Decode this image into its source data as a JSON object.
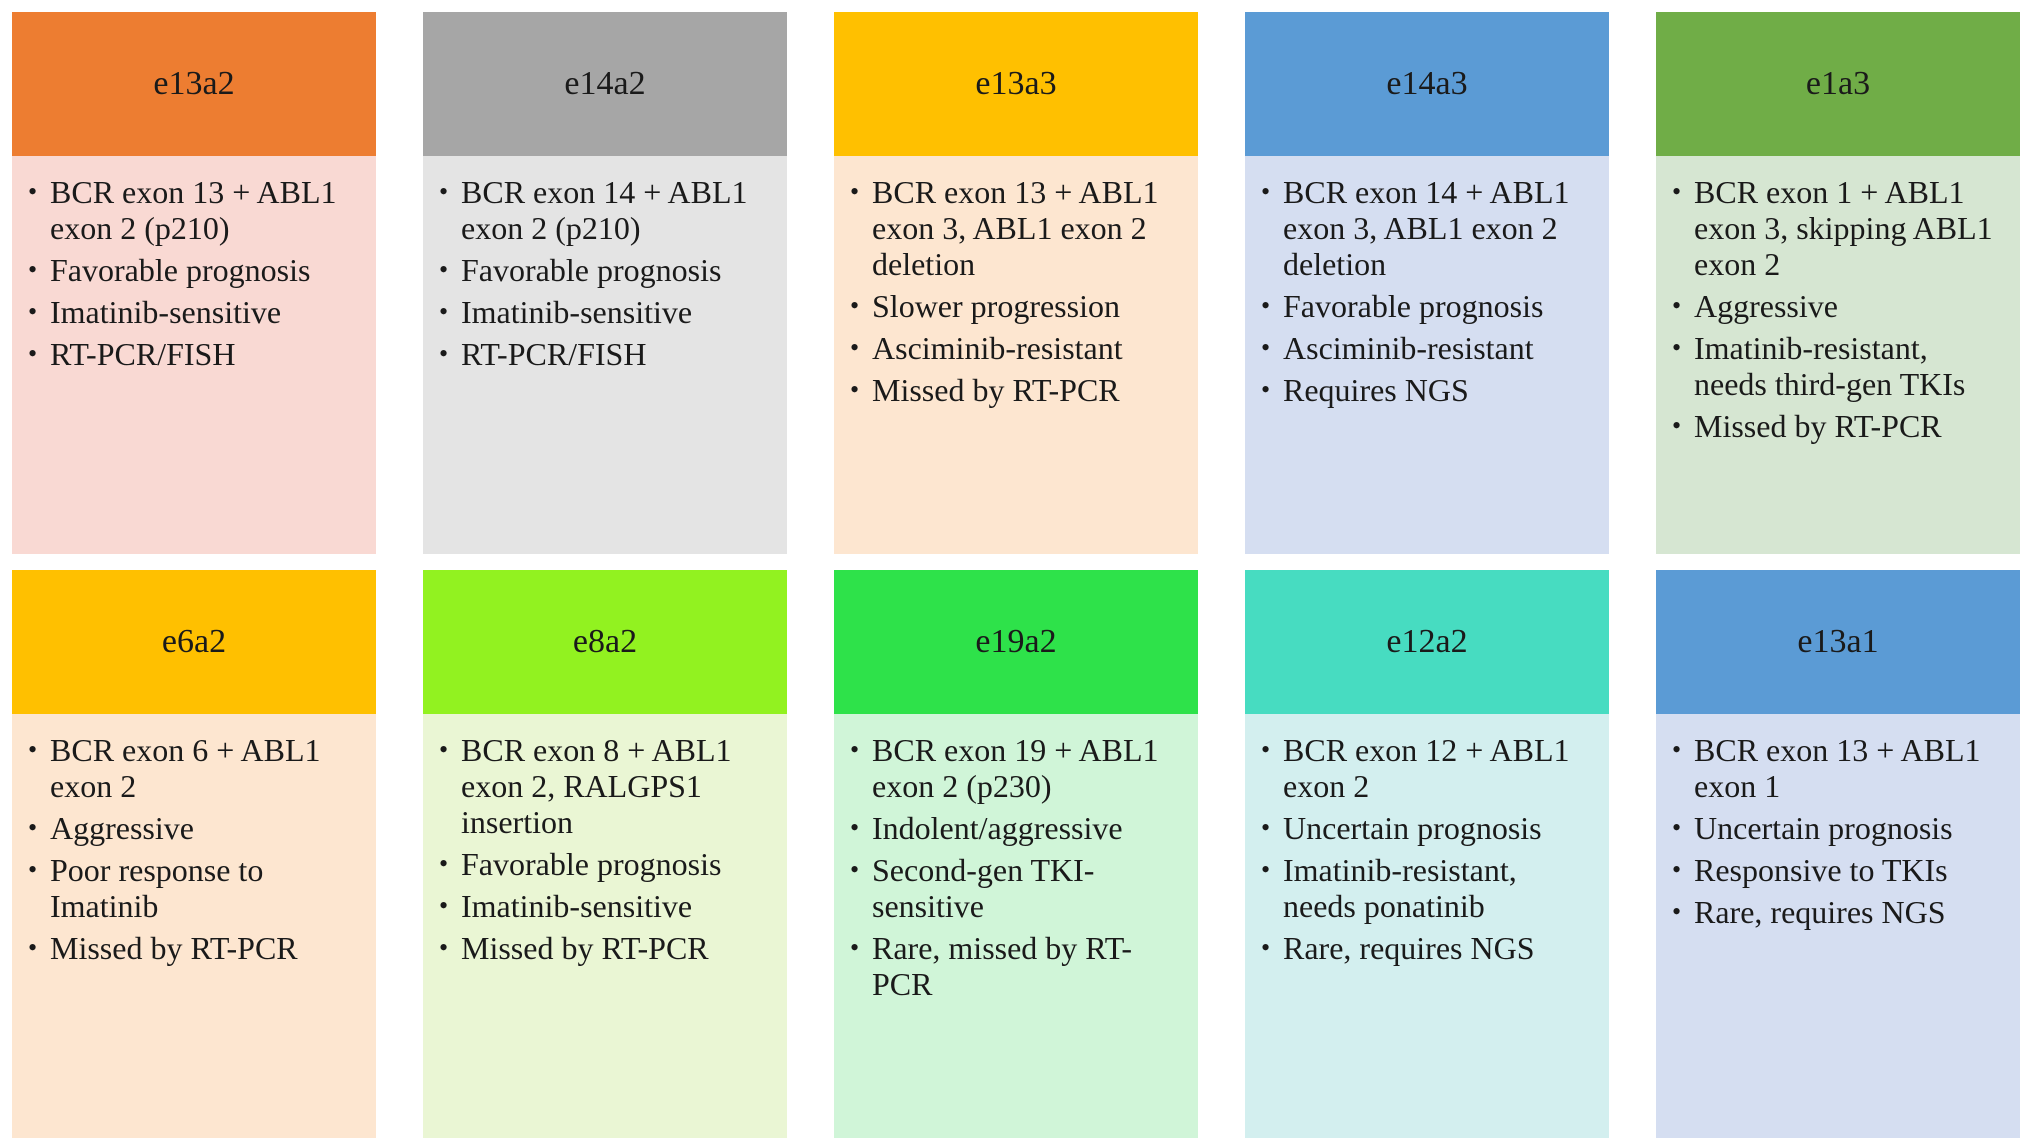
{
  "cards": [
    {
      "title": "e13a2",
      "header_color": "#ED7D31",
      "body_color": "#F9D9D3",
      "items": [
        "BCR exon 13 + ABL1 exon 2 (p210)",
        "Favorable prognosis",
        "Imatinib-sensitive",
        "RT-PCR/FISH"
      ]
    },
    {
      "title": "e14a2",
      "header_color": "#A6A6A6",
      "body_color": "#E4E4E4",
      "items": [
        "BCR exon 14 + ABL1 exon 2 (p210)",
        "Favorable prognosis",
        "Imatinib-sensitive",
        "RT-PCR/FISH"
      ]
    },
    {
      "title": "e13a3",
      "header_color": "#FFC000",
      "body_color": "#FDE6D0",
      "items": [
        "BCR exon 13 + ABL1 exon 3, ABL1 exon 2 deletion",
        "Slower progression",
        "Asciminib-resistant",
        "Missed by RT-PCR"
      ]
    },
    {
      "title": "e14a3",
      "header_color": "#5B9BD5",
      "body_color": "#D5DEF1",
      "items": [
        "BCR exon 14 + ABL1 exon 3, ABL1 exon 2 deletion",
        "Favorable prognosis",
        "Asciminib-resistant",
        "Requires NGS"
      ]
    },
    {
      "title": "e1a3",
      "header_color": "#70AD47",
      "body_color": "#D6E6D2",
      "items": [
        "BCR exon 1 + ABL1 exon 3, skipping ABL1 exon 2",
        "Aggressive",
        "Imatinib-resistant, needs third-gen TKIs",
        "Missed by RT-PCR"
      ]
    },
    {
      "title": "e6a2",
      "header_color": "#FFC000",
      "body_color": "#FDE6D0",
      "items": [
        "BCR exon 6 + ABL1 exon 2",
        "Aggressive",
        "Poor response to Imatinib",
        "Missed by RT-PCR"
      ]
    },
    {
      "title": "e8a2",
      "header_color": "#92F220",
      "body_color": "#EAF6D4",
      "items": [
        "BCR exon 8 + ABL1 exon 2, RALGPS1 insertion",
        "Favorable prognosis",
        "Imatinib-sensitive",
        "Missed by RT-PCR"
      ]
    },
    {
      "title": "e19a2",
      "header_color": "#2EE24A",
      "body_color": "#D0F5D8",
      "items": [
        "BCR exon 19 + ABL1 exon 2 (p230)",
        "Indolent/aggressive",
        "Second-gen TKI-sensitive",
        "Rare, missed by RT-PCR"
      ]
    },
    {
      "title": "e12a2",
      "header_color": "#47DCC1",
      "body_color": "#D3EFEF",
      "items": [
        "BCR exon 12 + ABL1 exon 2",
        "Uncertain prognosis",
        "Imatinib-resistant, needs ponatinib",
        "Rare, requires NGS"
      ]
    },
    {
      "title": "e13a1",
      "header_color": "#5B9BD5",
      "body_color": "#D5DEF1",
      "items": [
        "BCR exon 13 + ABL1 exon 1",
        "Uncertain prognosis",
        "Responsive to TKIs",
        "Rare, requires NGS"
      ]
    }
  ]
}
